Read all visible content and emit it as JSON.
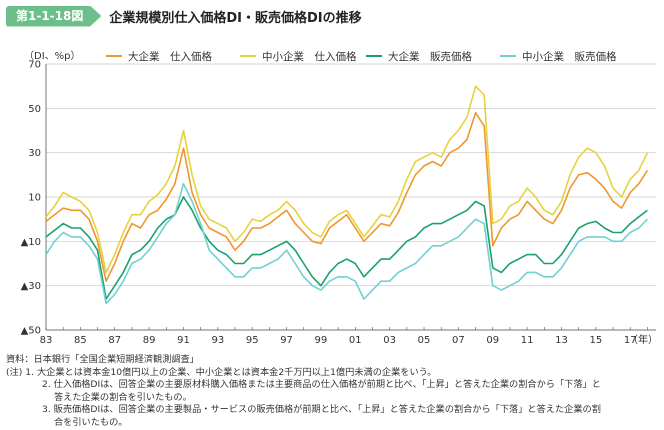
{
  "figure": {
    "number": "第1-1-18図",
    "title": "企業規模別仕入価格DI・販売価格DIの推移"
  },
  "unit": "（DI、%p）",
  "notes": {
    "source": "資料：日本銀行「全国企業短期経済観測調査」",
    "note1": "(注) 1. 大企業とは資本金10億円以上の企業、中小企業とは資本金2千万円以上1億円未満の企業をいう。",
    "note2a": "2. 仕入価格DIは、回答企業の主要原材料購入価格または主要商品の仕入価格が前期と比べ、「上昇」と答えた企業の割合から「下落」と",
    "note2b": "答えた企業の割合を引いたもの。",
    "note3a": "3. 販売価格DIは、回答企業の主要製品・サービスの販売価格が前期と比べ、「上昇」と答えた企業の割合から「下落」と答えた企業の割",
    "note3b": "合を引いたもの。"
  },
  "chart_data": {
    "type": "line",
    "title": "企業規模別仕入価格DI・販売価格DIの推移",
    "ylabel": "（DI、%p）",
    "xlabel": "（年）",
    "ylim": [
      -50,
      70
    ],
    "yticks": [
      70,
      50,
      30,
      10,
      -10,
      -30,
      -50
    ],
    "ytick_labels": [
      "70",
      "50",
      "30",
      "10",
      "▲10",
      "▲30",
      "▲50"
    ],
    "xlim": [
      1983,
      2018.5
    ],
    "xticks": [
      1983,
      1985,
      1987,
      1989,
      1991,
      1993,
      1995,
      1997,
      1999,
      2001,
      2003,
      2005,
      2007,
      2009,
      2011,
      2013,
      2015,
      2017
    ],
    "xtick_labels": [
      "83",
      "85",
      "87",
      "89",
      "91",
      "93",
      "95",
      "97",
      "99",
      "01",
      "03",
      "05",
      "07",
      "09",
      "11",
      "13",
      "15",
      "17"
    ],
    "x_unit_label": "（年）",
    "legend_position": "top",
    "grid": "horizontal",
    "x_points": [
      1983.0,
      1983.5,
      1984.0,
      1984.5,
      1985.0,
      1985.5,
      1986.0,
      1986.5,
      1987.0,
      1987.5,
      1988.0,
      1988.5,
      1989.0,
      1989.5,
      1990.0,
      1990.5,
      1991.0,
      1991.5,
      1992.0,
      1992.5,
      1993.0,
      1993.5,
      1994.0,
      1994.5,
      1995.0,
      1995.5,
      1996.0,
      1996.5,
      1997.0,
      1997.5,
      1998.0,
      1998.5,
      1999.0,
      1999.5,
      2000.0,
      2000.5,
      2001.0,
      2001.5,
      2002.0,
      2002.5,
      2003.0,
      2003.5,
      2004.0,
      2004.5,
      2005.0,
      2005.5,
      2006.0,
      2006.5,
      2007.0,
      2007.5,
      2008.0,
      2008.5,
      2009.0,
      2009.5,
      2010.0,
      2010.5,
      2011.0,
      2011.5,
      2012.0,
      2012.5,
      2013.0,
      2013.5,
      2014.0,
      2014.5,
      2015.0,
      2015.5,
      2016.0,
      2016.5,
      2017.0,
      2017.5,
      2018.0
    ],
    "series": [
      {
        "name": "大企業　仕入価格",
        "color": "#f0962e",
        "values": [
          -1,
          2,
          5,
          4,
          4,
          0,
          -10,
          -28,
          -20,
          -10,
          -2,
          -4,
          2,
          4,
          9,
          16,
          32,
          12,
          2,
          -4,
          -6,
          -8,
          -14,
          -10,
          -4,
          -4,
          -2,
          1,
          4,
          -2,
          -6,
          -10,
          -11,
          -4,
          -1,
          2,
          -4,
          -10,
          -6,
          -2,
          -3,
          3,
          12,
          20,
          24,
          26,
          24,
          30,
          32,
          36,
          48,
          42,
          -12,
          -4,
          0,
          2,
          8,
          4,
          0,
          -2,
          4,
          14,
          20,
          21,
          18,
          14,
          8,
          5,
          12,
          16,
          22
        ]
      },
      {
        "name": "中小企業　仕入価格",
        "color": "#e6d23c",
        "values": [
          1,
          6,
          12,
          10,
          8,
          4,
          -6,
          -24,
          -16,
          -6,
          2,
          2,
          8,
          11,
          16,
          24,
          40,
          20,
          6,
          0,
          -2,
          -4,
          -10,
          -6,
          0,
          -1,
          2,
          4,
          8,
          4,
          -2,
          -6,
          -8,
          -1,
          2,
          4,
          -2,
          -8,
          -3,
          2,
          1,
          8,
          18,
          26,
          28,
          30,
          28,
          36,
          40,
          46,
          60,
          56,
          -2,
          0,
          6,
          8,
          14,
          10,
          4,
          2,
          8,
          20,
          28,
          32,
          30,
          24,
          14,
          10,
          18,
          22,
          30
        ]
      },
      {
        "name": "大企業　販売価格",
        "color": "#1aa06e",
        "values": [
          -8,
          -5,
          -2,
          -4,
          -4,
          -8,
          -14,
          -36,
          -30,
          -24,
          -16,
          -14,
          -10,
          -4,
          0,
          2,
          10,
          4,
          -4,
          -10,
          -14,
          -16,
          -20,
          -20,
          -16,
          -16,
          -14,
          -12,
          -10,
          -14,
          -20,
          -26,
          -30,
          -24,
          -20,
          -18,
          -20,
          -26,
          -22,
          -18,
          -18,
          -14,
          -10,
          -8,
          -4,
          -2,
          -2,
          0,
          2,
          4,
          8,
          6,
          -22,
          -24,
          -20,
          -18,
          -16,
          -16,
          -20,
          -20,
          -16,
          -10,
          -4,
          -2,
          -1,
          -4,
          -6,
          -6,
          -2,
          1,
          4
        ]
      },
      {
        "name": "中小企業　販売価格",
        "color": "#70d0d2",
        "values": [
          -16,
          -10,
          -6,
          -8,
          -8,
          -12,
          -18,
          -38,
          -34,
          -28,
          -20,
          -18,
          -14,
          -8,
          -2,
          2,
          16,
          8,
          -2,
          -14,
          -18,
          -22,
          -26,
          -26,
          -22,
          -22,
          -20,
          -18,
          -14,
          -20,
          -26,
          -30,
          -32,
          -28,
          -26,
          -26,
          -28,
          -36,
          -32,
          -28,
          -28,
          -24,
          -22,
          -20,
          -16,
          -12,
          -12,
          -10,
          -8,
          -4,
          0,
          -2,
          -30,
          -32,
          -30,
          -28,
          -24,
          -24,
          -26,
          -26,
          -22,
          -16,
          -10,
          -8,
          -8,
          -8,
          -10,
          -10,
          -6,
          -4,
          0
        ]
      }
    ]
  }
}
